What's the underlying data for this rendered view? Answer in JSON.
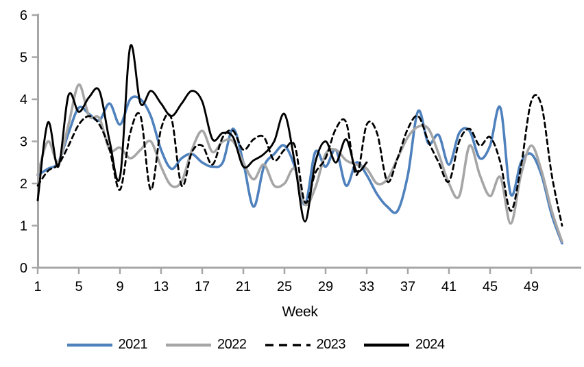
{
  "chart_data": {
    "type": "line",
    "title": "",
    "xlabel": "Week",
    "ylabel": "",
    "grid": false,
    "legend_position": "bottom",
    "axis_color": "#a6a6a6",
    "text_color": "#000000",
    "background_color": "#ffffff",
    "xlim": [
      1,
      52
    ],
    "ylim": [
      0,
      6
    ],
    "x_ticks": [
      1,
      5,
      9,
      13,
      17,
      21,
      25,
      29,
      33,
      37,
      41,
      45,
      49
    ],
    "y_ticks": [
      0,
      1,
      2,
      3,
      4,
      5,
      6
    ],
    "x": [
      1,
      2,
      3,
      4,
      5,
      6,
      7,
      8,
      9,
      10,
      11,
      12,
      13,
      14,
      15,
      16,
      17,
      18,
      19,
      20,
      21,
      22,
      23,
      24,
      25,
      26,
      27,
      28,
      29,
      30,
      31,
      32,
      33,
      34,
      35,
      36,
      37,
      38,
      39,
      40,
      41,
      42,
      43,
      44,
      45,
      46,
      47,
      48,
      49,
      50,
      51,
      52
    ],
    "series": [
      {
        "name": "2021",
        "color": "#4f81bd",
        "style": "solid",
        "width": 3.6,
        "start_week": 1,
        "values": [
          2.2,
          2.35,
          2.5,
          3.2,
          3.8,
          3.65,
          3.5,
          3.9,
          3.4,
          4.0,
          4.0,
          3.6,
          2.8,
          2.35,
          2.6,
          2.7,
          2.5,
          2.4,
          2.5,
          3.3,
          2.5,
          1.45,
          2.4,
          2.7,
          2.9,
          2.4,
          1.5,
          2.75,
          2.4,
          2.8,
          1.95,
          2.5,
          2.2,
          1.75,
          1.45,
          1.35,
          2.2,
          3.72,
          2.95,
          3.15,
          2.45,
          3.2,
          3.25,
          2.6,
          2.9,
          3.8,
          1.75,
          2.5,
          2.7,
          2.2,
          1.25,
          0.58
        ]
      },
      {
        "name": "2022",
        "color": "#a6a6a6",
        "style": "solid",
        "width": 3.6,
        "start_week": 1,
        "values": [
          2.2,
          3.0,
          2.5,
          3.4,
          4.35,
          3.6,
          3.55,
          2.8,
          2.85,
          2.6,
          2.8,
          3.0,
          2.4,
          1.95,
          2.05,
          2.8,
          3.25,
          2.75,
          3.0,
          3.0,
          2.5,
          2.1,
          2.45,
          1.95,
          2.0,
          2.35,
          1.5,
          1.9,
          2.7,
          2.8,
          2.55,
          2.45,
          2.35,
          2.0,
          2.1,
          2.6,
          3.1,
          3.35,
          3.3,
          2.7,
          2.0,
          1.7,
          2.9,
          2.2,
          1.7,
          2.15,
          1.05,
          2.2,
          2.9,
          2.3,
          1.35,
          0.62
        ]
      },
      {
        "name": "2023",
        "color": "#000000",
        "style": "dashed",
        "width": 2.8,
        "start_week": 1,
        "values": [
          1.95,
          2.3,
          2.45,
          2.9,
          3.4,
          3.6,
          3.4,
          2.8,
          1.85,
          3.2,
          3.6,
          1.85,
          3.3,
          3.55,
          1.95,
          2.75,
          2.9,
          2.45,
          3.1,
          3.25,
          2.8,
          3.05,
          3.1,
          2.55,
          2.8,
          2.9,
          1.55,
          2.25,
          2.6,
          3.3,
          3.45,
          2.2,
          3.4,
          3.2,
          2.05,
          2.6,
          3.3,
          3.6,
          3.0,
          2.5,
          2.05,
          3.0,
          3.3,
          2.9,
          3.1,
          2.5,
          1.35,
          2.4,
          3.95,
          3.85,
          2.2,
          1.0
        ]
      },
      {
        "name": "2024",
        "color": "#000000",
        "style": "solid",
        "width": 2.9,
        "start_week": 1,
        "values": [
          1.6,
          3.45,
          2.4,
          4.1,
          3.7,
          4.05,
          4.2,
          3.0,
          2.15,
          5.25,
          3.9,
          4.2,
          3.9,
          3.6,
          3.9,
          4.2,
          3.95,
          3.05,
          3.2,
          3.1,
          2.4,
          2.55,
          2.7,
          3.0,
          3.65,
          2.5,
          1.1,
          2.5,
          3.0,
          2.5,
          3.05,
          2.3,
          2.5
        ]
      }
    ]
  }
}
